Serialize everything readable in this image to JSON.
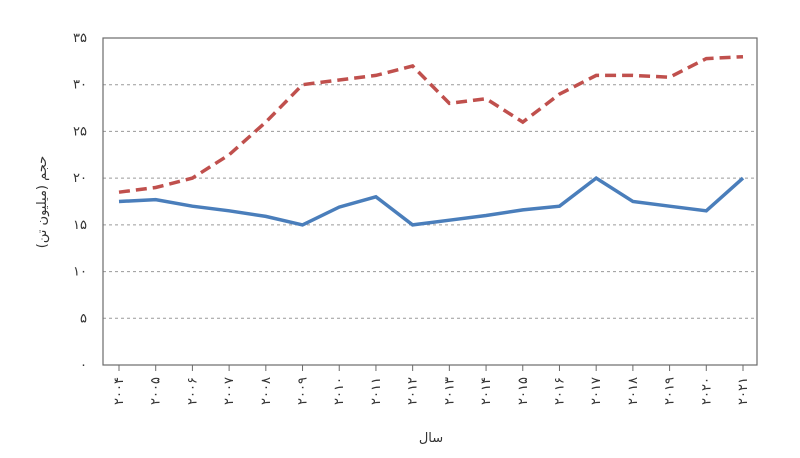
{
  "chart_data": {
    "type": "line",
    "xlabel": "سال",
    "ylabel": "حجم (میلیون تن)",
    "ylim": [
      0,
      35
    ],
    "y_ticks": [
      0,
      5,
      10,
      15,
      20,
      25,
      30,
      35
    ],
    "y_tick_labels": [
      "۰",
      "۵",
      "۱۰",
      "۱۵",
      "۲۰",
      "۲۵",
      "۳۰",
      "۳۵"
    ],
    "categories": [
      "۲۰۰۴",
      "۲۰۰۵",
      "۲۰۰۶",
      "۲۰۰۷",
      "۲۰۰۸",
      "۲۰۰۹",
      "۲۰۱۰",
      "۲۰۱۱",
      "۲۰۱۲",
      "۲۰۱۳",
      "۲۰۱۴",
      "۲۰۱۵",
      "۲۰۱۶",
      "۲۰۱۷",
      "۲۰۱۸",
      "۲۰۱۹",
      "۲۰۲۰",
      "۲۰۲۱"
    ],
    "x": [
      2004,
      2005,
      2006,
      2007,
      2008,
      2009,
      2010,
      2011,
      2012,
      2013,
      2014,
      2015,
      2016,
      2017,
      2018,
      2019,
      2020,
      2021
    ],
    "grid": "horizontal-dashed",
    "legend": "none",
    "series": [
      {
        "color": "#c0504d",
        "style": "dashed",
        "values": [
          18.5,
          19,
          20,
          22.5,
          26,
          30,
          30.5,
          31,
          32,
          28,
          28.5,
          26,
          29,
          31,
          31,
          30.8,
          32.8,
          33
        ]
      },
      {
        "color": "#4a7ebb",
        "style": "solid",
        "values": [
          17.5,
          17.7,
          17,
          16.5,
          15.9,
          15,
          16.9,
          18,
          15,
          15.5,
          16,
          16.6,
          17,
          20,
          17.5,
          17,
          16.5,
          20
        ]
      }
    ]
  }
}
